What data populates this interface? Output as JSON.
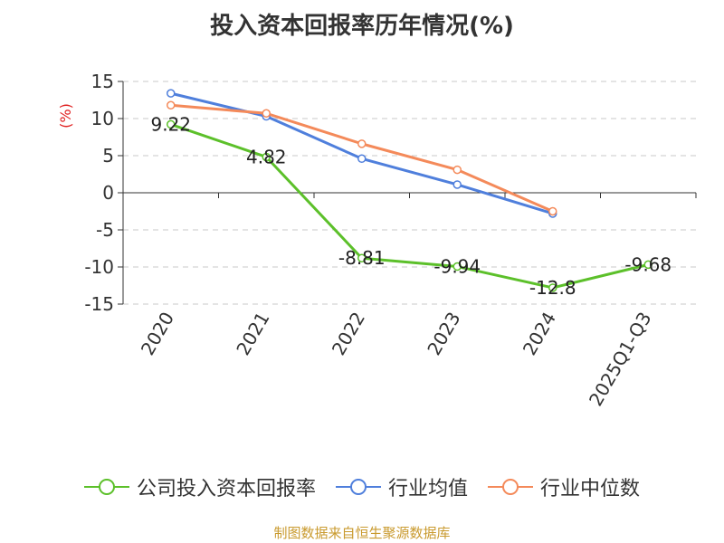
{
  "chart_data": {
    "type": "line",
    "title": "投入资本回报率历年情况(%)",
    "ylabel": "(%)",
    "categories": [
      "2020",
      "2021",
      "2022",
      "2023",
      "2024",
      "2025Q1-Q3"
    ],
    "ylim": [
      -15,
      15
    ],
    "yticks": [
      "15",
      "10",
      "5",
      "0",
      "-5",
      "-10",
      "-15"
    ],
    "grid": true,
    "legend_position": "bottom",
    "series": [
      {
        "name": "公司投入资本回报率",
        "color": "#5cc02a",
        "values": [
          9.22,
          4.82,
          -8.81,
          -9.94,
          -12.8,
          -9.68
        ],
        "labels": [
          "9.22",
          "4.82",
          "-8.81",
          "-9.94",
          "-12.8",
          "-9.68"
        ]
      },
      {
        "name": "行业均值",
        "color": "#4f7fdc",
        "values": [
          13.4,
          10.3,
          4.6,
          1.1,
          -2.8,
          null
        ]
      },
      {
        "name": "行业中位数",
        "color": "#f48a5a",
        "values": [
          11.8,
          10.7,
          6.6,
          3.1,
          -2.5,
          null
        ]
      }
    ]
  },
  "source_note": "制图数据来自恒生聚源数据库",
  "colors": {
    "axis": "#333333",
    "grid": "#c8c8c8",
    "ylabel": "#e02020",
    "source": "#c99a2e"
  }
}
